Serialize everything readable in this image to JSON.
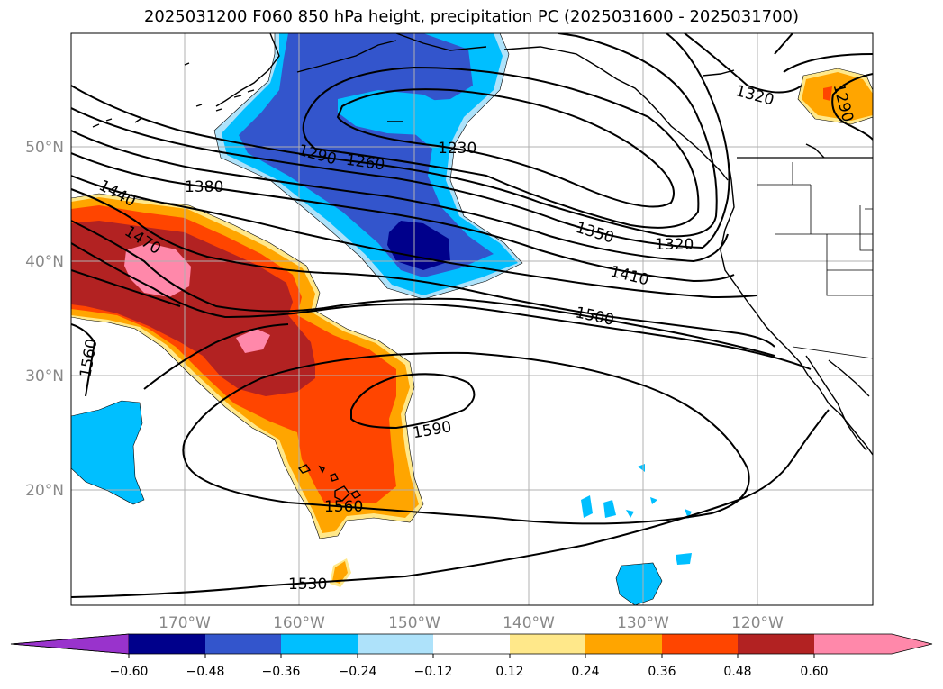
{
  "title": "2025031200 F060 850 hPa height, precipitation PC (2025031600 - 2025031700)",
  "latitude_labels": [
    "50°N",
    "40°N",
    "30°N",
    "20°N"
  ],
  "longitude_labels": [
    "170°W",
    "160°W",
    "150°W",
    "140°W",
    "130°W",
    "120°W"
  ],
  "contour_labels": [
    "1320",
    "1290",
    "1290",
    "1260",
    "1230",
    "1380",
    "1440",
    "1470",
    "1350",
    "1320",
    "1410",
    "1500",
    "1560",
    "1590",
    "1560",
    "1530"
  ],
  "colorbar": {
    "ticks": [
      "−0.60",
      "−0.48",
      "−0.36",
      "−0.24",
      "−0.12",
      "0.12",
      "0.24",
      "0.36",
      "0.48",
      "0.60"
    ],
    "colors": [
      "#9933cc",
      "#00008b",
      "#3355cc",
      "#00bfff",
      "#aee2fa",
      "#ffffff",
      "#ffe88a",
      "#ffa500",
      "#ff4500",
      "#b22222",
      "#ff88aa"
    ]
  },
  "fill_colors": {
    "light_blue": "#aee2fa",
    "cyan": "#00bfff",
    "blue": "#3355cc",
    "navy": "#00008b",
    "yellow": "#ffe88a",
    "orange": "#ffa500",
    "red_orange": "#ff4500",
    "dark_red": "#b22222",
    "pink": "#ff88aa"
  }
}
